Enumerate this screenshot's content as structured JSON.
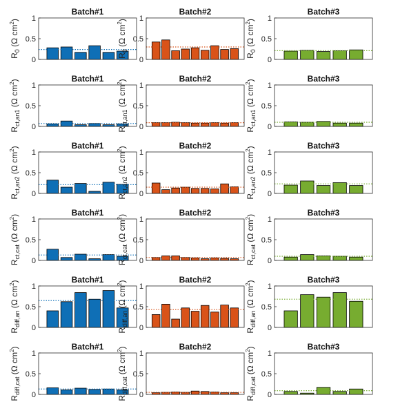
{
  "colors": {
    "batch1": "#0f6fb6",
    "batch2": "#d95319",
    "batch3": "#77ac30"
  },
  "chart_data": {
    "type": "bar",
    "ylim": [
      0,
      1
    ],
    "yticks": [
      "0",
      "0.5",
      "1"
    ],
    "grid": false,
    "columns": [
      "Batch#1",
      "Batch#2",
      "Batch#3"
    ],
    "rows": [
      {
        "ylabel": {
          "main": "R",
          "sub": "0",
          "unit": " (Ω cm",
          "sup": "2",
          "close": ")"
        },
        "panels": [
          {
            "title": "Batch#1",
            "values": [
              0.28,
              0.3,
              0.17,
              0.33,
              0.17,
              0.2
            ],
            "mean": 0.24
          },
          {
            "title": "Batch#2",
            "values": [
              0.42,
              0.47,
              0.21,
              0.25,
              0.28,
              0.22,
              0.33,
              0.24,
              0.26
            ],
            "mean": 0.3
          },
          {
            "title": "Batch#3",
            "values": [
              0.2,
              0.22,
              0.19,
              0.21,
              0.23
            ],
            "mean": 0.21
          }
        ]
      },
      {
        "ylabel": {
          "main": "R",
          "sub": "ct,an1",
          "unit": " (Ω cm",
          "sup": "2",
          "close": ")"
        },
        "panels": [
          {
            "title": "Batch#1",
            "values": [
              0.06,
              0.13,
              0.04,
              0.07,
              0.04,
              0.06
            ],
            "mean": 0.07
          },
          {
            "title": "Batch#2",
            "values": [
              0.09,
              0.09,
              0.1,
              0.09,
              0.08,
              0.08,
              0.09,
              0.08,
              0.09
            ],
            "mean": 0.09
          },
          {
            "title": "Batch#3",
            "values": [
              0.11,
              0.1,
              0.12,
              0.08,
              0.08
            ],
            "mean": 0.1
          }
        ]
      },
      {
        "ylabel": {
          "main": "R",
          "sub": "ct,an2",
          "unit": " (Ω cm",
          "sup": "2",
          "close": ")"
        },
        "panels": [
          {
            "title": "Batch#1",
            "values": [
              0.32,
              0.15,
              0.24,
              0.05,
              0.27,
              0.22
            ],
            "mean": 0.21
          },
          {
            "title": "Batch#2",
            "values": [
              0.25,
              0.09,
              0.13,
              0.15,
              0.12,
              0.12,
              0.11,
              0.23,
              0.16
            ],
            "mean": 0.15
          },
          {
            "title": "Batch#3",
            "values": [
              0.2,
              0.3,
              0.19,
              0.26,
              0.19
            ],
            "mean": 0.23
          }
        ]
      },
      {
        "ylabel": {
          "main": "R",
          "sub": "ct,cat",
          "unit": " (Ω cm",
          "sup": "2",
          "close": ")"
        },
        "panels": [
          {
            "title": "Batch#1",
            "values": [
              0.27,
              0.07,
              0.15,
              0.04,
              0.14,
              0.1
            ],
            "mean": 0.13
          },
          {
            "title": "Batch#2",
            "values": [
              0.07,
              0.11,
              0.11,
              0.07,
              0.06,
              0.04,
              0.06,
              0.05,
              0.04
            ],
            "mean": 0.07
          },
          {
            "title": "Batch#3",
            "values": [
              0.08,
              0.14,
              0.11,
              0.1,
              0.08
            ],
            "mean": 0.1
          }
        ]
      },
      {
        "ylabel": {
          "main": "R",
          "sub": "diff,an",
          "unit": " (Ω cm",
          "sup": "2",
          "close": ")"
        },
        "panels": [
          {
            "title": "Batch#1",
            "values": [
              0.4,
              0.62,
              0.84,
              0.68,
              0.89,
              0.47
            ],
            "mean": 0.65
          },
          {
            "title": "Batch#2",
            "values": [
              0.31,
              0.56,
              0.2,
              0.47,
              0.39,
              0.53,
              0.37,
              0.54,
              0.47
            ],
            "mean": 0.43
          },
          {
            "title": "Batch#3",
            "values": [
              0.4,
              0.79,
              0.73,
              0.84,
              0.63
            ],
            "mean": 0.68
          }
        ]
      },
      {
        "ylabel": {
          "main": "R",
          "sub": "diff,cat",
          "unit": " (Ω cm",
          "sup": "2",
          "close": ")"
        },
        "panels": [
          {
            "title": "Batch#1",
            "values": [
              0.16,
              0.11,
              0.15,
              0.12,
              0.13,
              0.11
            ],
            "mean": 0.13
          },
          {
            "title": "Batch#2",
            "values": [
              0.04,
              0.05,
              0.06,
              0.05,
              0.08,
              0.07,
              0.06,
              0.04,
              0.04
            ],
            "mean": 0.05
          },
          {
            "title": "Batch#3",
            "values": [
              0.07,
              0.03,
              0.17,
              0.07,
              0.13
            ],
            "mean": 0.09
          }
        ]
      }
    ]
  }
}
